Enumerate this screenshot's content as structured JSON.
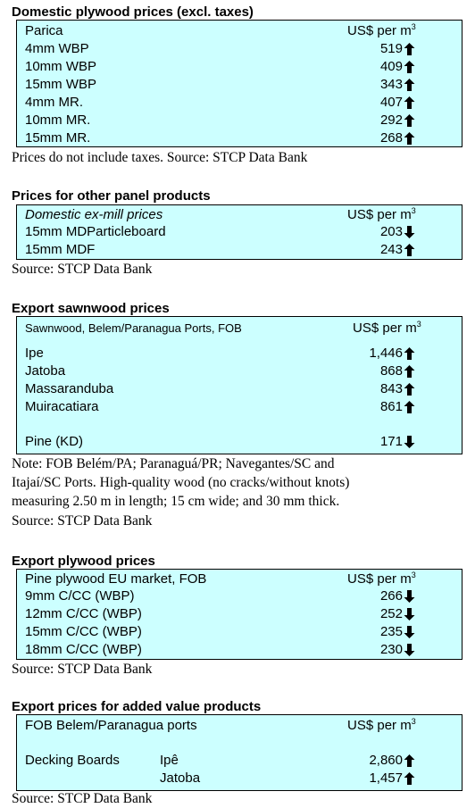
{
  "domestic_plywood": {
    "title": "Domestic plywood prices (excl. taxes)",
    "header": {
      "label": "Parica",
      "unit": "US$ per m",
      "unit_sup": "3"
    },
    "rows": [
      {
        "label": "4mm WBP",
        "value": "519",
        "trend": "up"
      },
      {
        "label": "10mm WBP",
        "value": "409",
        "trend": "up"
      },
      {
        "label": "15mm WBP",
        "value": "343",
        "trend": "up"
      },
      {
        "label": "4mm MR.",
        "value": "407",
        "trend": "up"
      },
      {
        "label": "10mm MR.",
        "value": "292",
        "trend": "up"
      },
      {
        "label": "15mm MR.",
        "value": "268",
        "trend": "up"
      }
    ],
    "note": "Prices do not include taxes. Source: STCP Data Bank"
  },
  "other_panels": {
    "title": "Prices for other panel products",
    "header": {
      "label": "Domestic ex-mill prices",
      "unit": "US$ per m",
      "unit_sup": "3"
    },
    "rows": [
      {
        "label": "15mm MDParticleboard",
        "value": "203",
        "trend": "down"
      },
      {
        "label": "15mm MDF",
        "value": "243",
        "trend": "up"
      }
    ],
    "note": "Source: STCP Data Bank"
  },
  "export_sawnwood": {
    "title": "Export sawnwood prices",
    "header": {
      "label": "Sawnwood, Belem/Paranagua Ports, FOB",
      "unit": "US$ per m",
      "unit_sup": "3"
    },
    "rows": [
      {
        "label": "Ipe",
        "value": "1,446",
        "trend": "up"
      },
      {
        "label": "Jatoba",
        "value": "868",
        "trend": "up"
      },
      {
        "label": "Massaranduba",
        "value": "843",
        "trend": "up"
      },
      {
        "label": "Muiracatiara",
        "value": "861",
        "trend": "up"
      },
      {
        "label": "Pine (KD)",
        "value": "171",
        "trend": "down"
      }
    ],
    "note_lines": [
      "Note: FOB Belém/PA; Paranaguá/PR; Navegantes/SC and",
      "Itajaí/SC Ports. High-quality wood (no cracks/without knots)",
      "measuring 2.50 m in length; 15 cm wide; and 30 mm thick.",
      "Source: STCP Data Bank"
    ]
  },
  "export_plywood": {
    "title": "Export plywood prices",
    "header": {
      "label": "Pine plywood EU market, FOB",
      "unit": "US$ per m",
      "unit_sup": "3"
    },
    "rows": [
      {
        "label": "9mm C/CC (WBP)",
        "value": "266",
        "trend": "down"
      },
      {
        "label": "12mm C/CC (WBP)",
        "value": "252",
        "trend": "down"
      },
      {
        "label": "15mm C/CC (WBP)",
        "value": "235",
        "trend": "down"
      },
      {
        "label": "18mm C/CC (WBP)",
        "value": "230",
        "trend": "down"
      }
    ],
    "note": "Source: STCP Data Bank"
  },
  "added_value": {
    "title": "Export prices for added value products",
    "header": {
      "label": "FOB Belem/Paranagua ports",
      "unit": "US$ per m",
      "unit_sup": "3"
    },
    "rows": [
      {
        "label": "Decking Boards",
        "species": "Ipê",
        "value": "2,860",
        "trend": "up"
      },
      {
        "label": "",
        "species": "Jatoba",
        "value": "1,457",
        "trend": "up"
      }
    ],
    "note": "Source: STCP Data Bank"
  }
}
